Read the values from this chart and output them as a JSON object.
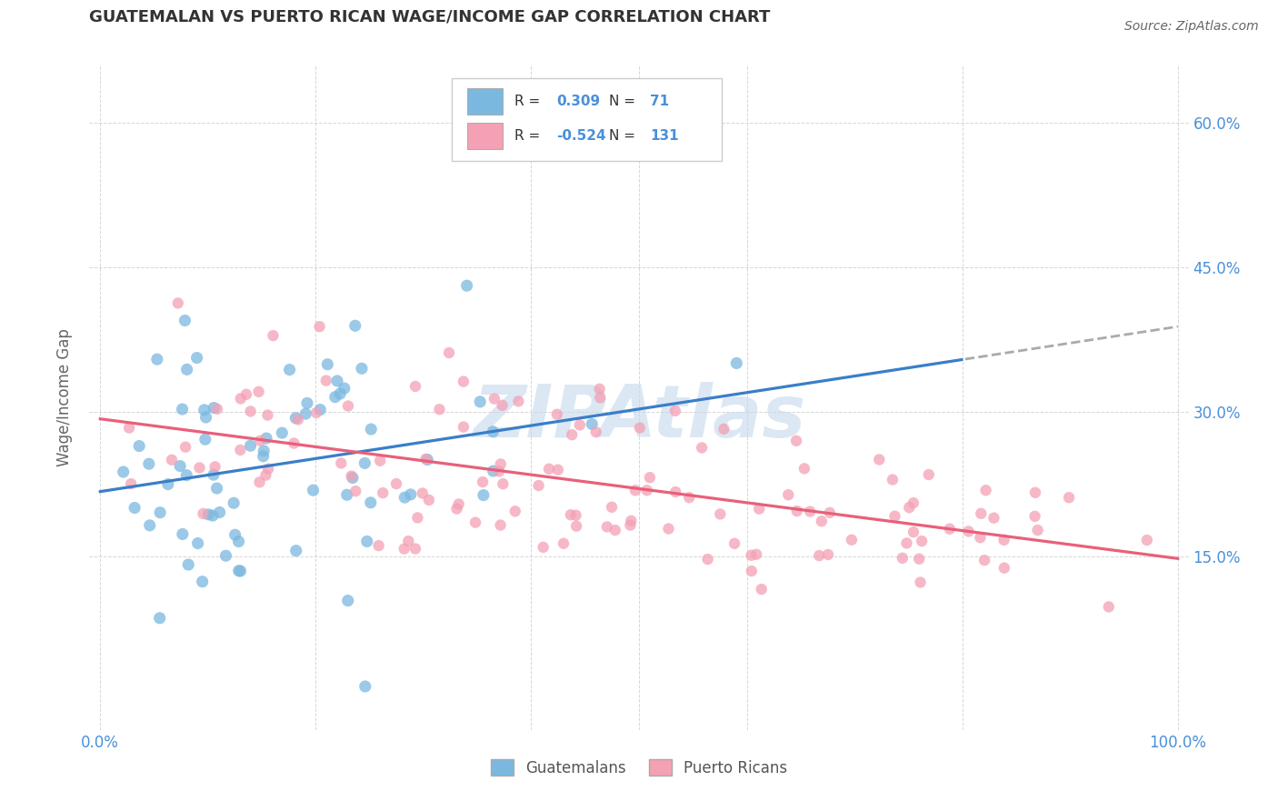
{
  "title": "GUATEMALAN VS PUERTO RICAN WAGE/INCOME GAP CORRELATION CHART",
  "source": "Source: ZipAtlas.com",
  "ylabel": "Wage/Income Gap",
  "xmin": 0.0,
  "xmax": 1.0,
  "ymin": -0.03,
  "ymax": 0.66,
  "yticks": [
    0.15,
    0.3,
    0.45,
    0.6
  ],
  "ytick_labels": [
    "15.0%",
    "30.0%",
    "45.0%",
    "60.0%"
  ],
  "blue_R": 0.309,
  "blue_N": 71,
  "pink_R": -0.524,
  "pink_N": 131,
  "blue_color": "#7ab8e0",
  "pink_color": "#f4a0b5",
  "blue_label": "Guatemalans",
  "pink_label": "Puerto Ricans",
  "trend_blue_color": "#3a7ec8",
  "trend_pink_color": "#e8607a",
  "trend_dash_color": "#aaaaaa",
  "watermark": "ZIPAtlas",
  "watermark_color": "#c5d8ee",
  "background_color": "#ffffff",
  "title_color": "#333333",
  "axis_label_color": "#4a90d9",
  "grid_color": "#cccccc",
  "title_fontsize": 13,
  "source_fontsize": 10,
  "seed": 42,
  "blue_intercept": 0.225,
  "blue_slope": 0.135,
  "pink_intercept": 0.285,
  "pink_slope": -0.155
}
